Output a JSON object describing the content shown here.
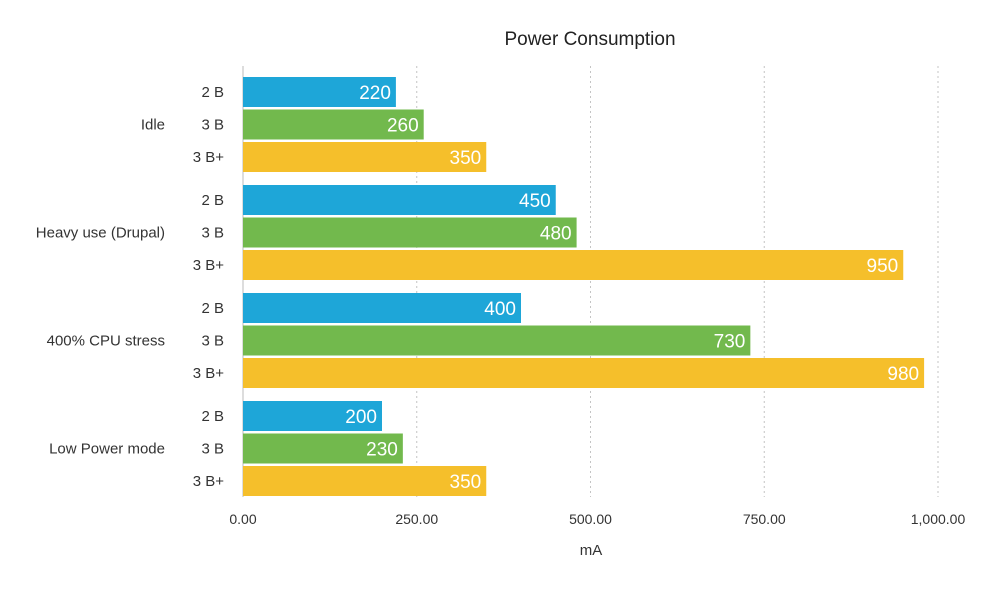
{
  "chart_data": {
    "type": "bar",
    "orientation": "horizontal",
    "title": "Power Consumption",
    "xlabel": "mA",
    "ylabel": "",
    "xlim": [
      0,
      1000
    ],
    "x_ticks": [
      0,
      250,
      500,
      750,
      1000
    ],
    "x_tick_labels": [
      "0.00",
      "250.00",
      "500.00",
      "750.00",
      "1,000.00"
    ],
    "grid": "vertical dotted",
    "legend": "none",
    "categories": [
      "Idle",
      "Heavy use (Drupal)",
      "400% CPU stress",
      "Low Power mode"
    ],
    "series": [
      {
        "name": "2 B",
        "color": "#1ea6d8",
        "values": [
          220,
          450,
          400,
          200
        ]
      },
      {
        "name": "3 B",
        "color": "#72b94d",
        "values": [
          260,
          480,
          730,
          230
        ]
      },
      {
        "name": "3 B+",
        "color": "#f5bf2b",
        "values": [
          350,
          950,
          980,
          350
        ]
      }
    ]
  }
}
